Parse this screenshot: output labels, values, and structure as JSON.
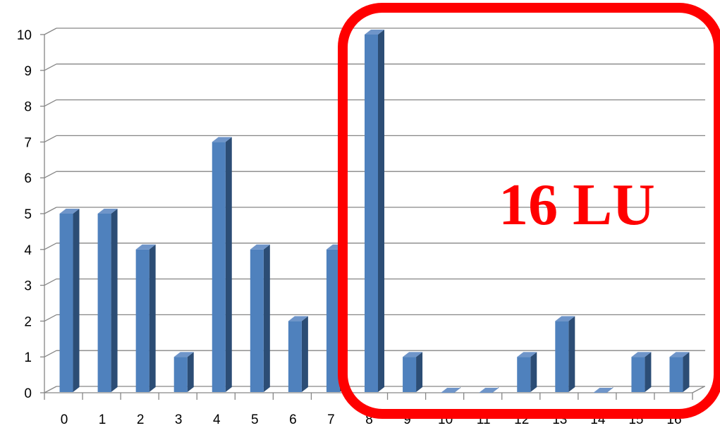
{
  "chart_data": {
    "type": "bar",
    "title": "",
    "xlabel": "",
    "ylabel": "",
    "categories": [
      "0",
      "1",
      "2",
      "3",
      "4",
      "5",
      "6",
      "7",
      "8",
      "9",
      "10",
      "11",
      "12",
      "13",
      "14",
      "15",
      "16"
    ],
    "values": [
      5,
      5,
      4,
      1,
      7,
      4,
      2,
      4,
      10,
      1,
      0,
      0,
      1,
      2,
      0,
      1,
      1
    ],
    "ylim": [
      0,
      10
    ],
    "yticks": [
      "0",
      "1",
      "2",
      "3",
      "4",
      "5",
      "6",
      "7",
      "8",
      "9",
      "10"
    ],
    "grid": true,
    "legend": "none",
    "style": "3d-column",
    "bar_color": "#4f81bd",
    "bar_side_color": "#2c4d75",
    "bar_top_color": "#6f95c9",
    "annotation": {
      "text": "16 LU",
      "color": "#ff0000",
      "highlight_categories": [
        "8",
        "9",
        "10",
        "11",
        "12",
        "13",
        "14",
        "15",
        "16"
      ]
    }
  }
}
